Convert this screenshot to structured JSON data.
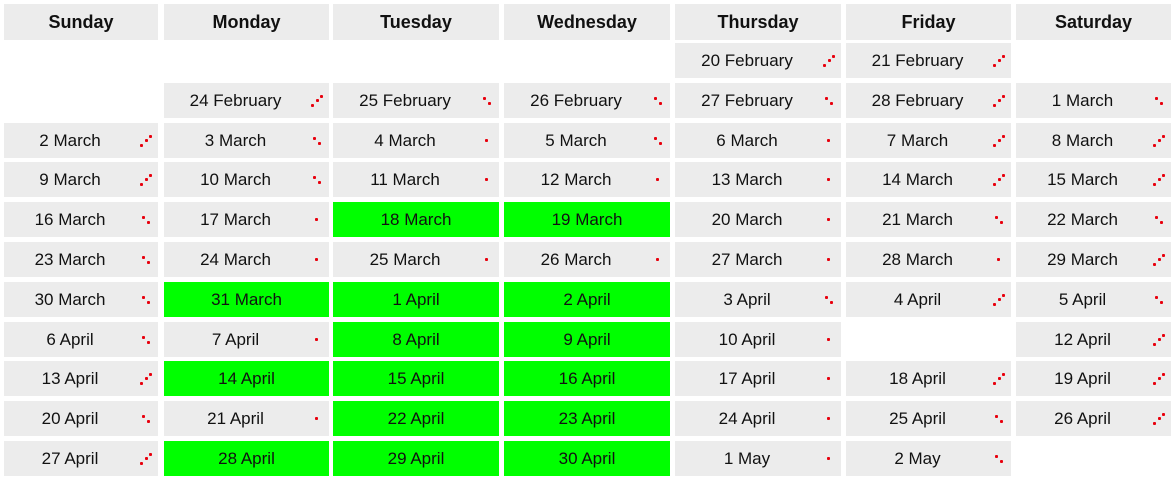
{
  "weekdays": [
    "Sunday",
    "Monday",
    "Tuesday",
    "Wednesday",
    "Thursday",
    "Friday",
    "Saturday"
  ],
  "weeks": [
    [
      null,
      null,
      null,
      null,
      {
        "label": "20 February",
        "icon": "diagonal-3-dots-icon"
      },
      {
        "label": "21 February",
        "icon": "diagonal-3-dots-icon"
      },
      null
    ],
    [
      null,
      {
        "label": "24 February",
        "icon": "diagonal-3-dots-icon"
      },
      {
        "label": "25 February",
        "icon": "diagonal-2-dots-down-icon"
      },
      {
        "label": "26 February",
        "icon": "diagonal-2-dots-down-icon"
      },
      {
        "label": "27 February",
        "icon": "diagonal-2-dots-down-icon"
      },
      {
        "label": "28 February",
        "icon": "diagonal-3-dots-icon"
      },
      {
        "label": "1 March",
        "icon": "diagonal-2-dots-down-icon"
      }
    ],
    [
      {
        "label": "2 March",
        "icon": "diagonal-3-dots-icon"
      },
      {
        "label": "3 March",
        "icon": "diagonal-2-dots-down-icon"
      },
      {
        "label": "4 March",
        "icon": "single-dot-icon"
      },
      {
        "label": "5 March",
        "icon": "diagonal-2-dots-down-icon"
      },
      {
        "label": "6 March",
        "icon": "single-dot-icon"
      },
      {
        "label": "7 March",
        "icon": "diagonal-3-dots-icon"
      },
      {
        "label": "8 March",
        "icon": "diagonal-3-dots-icon"
      }
    ],
    [
      {
        "label": "9 March",
        "icon": "diagonal-3-dots-icon"
      },
      {
        "label": "10 March",
        "icon": "diagonal-2-dots-down-icon"
      },
      {
        "label": "11 March",
        "icon": "single-dot-icon"
      },
      {
        "label": "12 March",
        "icon": "single-dot-icon"
      },
      {
        "label": "13 March",
        "icon": "single-dot-icon"
      },
      {
        "label": "14 March",
        "icon": "diagonal-3-dots-icon"
      },
      {
        "label": "15 March",
        "icon": "diagonal-3-dots-icon"
      }
    ],
    [
      {
        "label": "16 March",
        "icon": "diagonal-2-dots-down-icon"
      },
      {
        "label": "17 March",
        "icon": "single-dot-icon"
      },
      {
        "label": "18 March",
        "icon": "none",
        "highlight": true
      },
      {
        "label": "19 March",
        "icon": "none",
        "highlight": true
      },
      {
        "label": "20 March",
        "icon": "single-dot-icon"
      },
      {
        "label": "21 March",
        "icon": "diagonal-2-dots-down-icon"
      },
      {
        "label": "22 March",
        "icon": "diagonal-2-dots-down-icon"
      }
    ],
    [
      {
        "label": "23 March",
        "icon": "diagonal-2-dots-down-icon"
      },
      {
        "label": "24 March",
        "icon": "single-dot-icon"
      },
      {
        "label": "25 March",
        "icon": "single-dot-icon"
      },
      {
        "label": "26 March",
        "icon": "single-dot-icon"
      },
      {
        "label": "27 March",
        "icon": "single-dot-icon"
      },
      {
        "label": "28 March",
        "icon": "single-dot-icon"
      },
      {
        "label": "29 March",
        "icon": "diagonal-3-dots-icon"
      }
    ],
    [
      {
        "label": "30 March",
        "icon": "diagonal-2-dots-down-icon"
      },
      {
        "label": "31 March",
        "icon": "none",
        "highlight": true
      },
      {
        "label": "1 April",
        "icon": "none",
        "highlight": true
      },
      {
        "label": "2 April",
        "icon": "none",
        "highlight": true
      },
      {
        "label": "3 April",
        "icon": "diagonal-2-dots-down-icon"
      },
      {
        "label": "4 April",
        "icon": "diagonal-3-dots-icon"
      },
      {
        "label": "5 April",
        "icon": "diagonal-2-dots-down-icon"
      }
    ],
    [
      {
        "label": "6 April",
        "icon": "diagonal-2-dots-down-icon"
      },
      {
        "label": "7 April",
        "icon": "single-dot-icon"
      },
      {
        "label": "8 April",
        "icon": "none",
        "highlight": true
      },
      {
        "label": "9 April",
        "icon": "none",
        "highlight": true
      },
      {
        "label": "10 April",
        "icon": "single-dot-icon"
      },
      null,
      {
        "label": "12 April",
        "icon": "diagonal-3-dots-icon"
      }
    ],
    [
      {
        "label": "13 April",
        "icon": "diagonal-3-dots-icon"
      },
      {
        "label": "14 April",
        "icon": "none",
        "highlight": true
      },
      {
        "label": "15 April",
        "icon": "none",
        "highlight": true
      },
      {
        "label": "16 April",
        "icon": "none",
        "highlight": true
      },
      {
        "label": "17 April",
        "icon": "single-dot-icon"
      },
      {
        "label": "18 April",
        "icon": "diagonal-3-dots-icon"
      },
      {
        "label": "19 April",
        "icon": "diagonal-3-dots-icon"
      }
    ],
    [
      {
        "label": "20 April",
        "icon": "diagonal-2-dots-down-icon"
      },
      {
        "label": "21 April",
        "icon": "single-dot-icon"
      },
      {
        "label": "22 April",
        "icon": "none",
        "highlight": true
      },
      {
        "label": "23 April",
        "icon": "none",
        "highlight": true
      },
      {
        "label": "24 April",
        "icon": "single-dot-icon"
      },
      {
        "label": "25 April",
        "icon": "diagonal-2-dots-down-icon"
      },
      {
        "label": "26 April",
        "icon": "diagonal-3-dots-icon"
      }
    ],
    [
      {
        "label": "27 April",
        "icon": "diagonal-3-dots-icon"
      },
      {
        "label": "28 April",
        "icon": "none",
        "highlight": true
      },
      {
        "label": "29 April",
        "icon": "none",
        "highlight": true
      },
      {
        "label": "30 April",
        "icon": "none",
        "highlight": true
      },
      {
        "label": "1 May",
        "icon": "single-dot-icon"
      },
      {
        "label": "2 May",
        "icon": "diagonal-2-dots-down-icon"
      },
      null
    ]
  ],
  "colors": {
    "cell": "#ececec",
    "highlight": "#00ff00",
    "icon": "#e8000d"
  }
}
